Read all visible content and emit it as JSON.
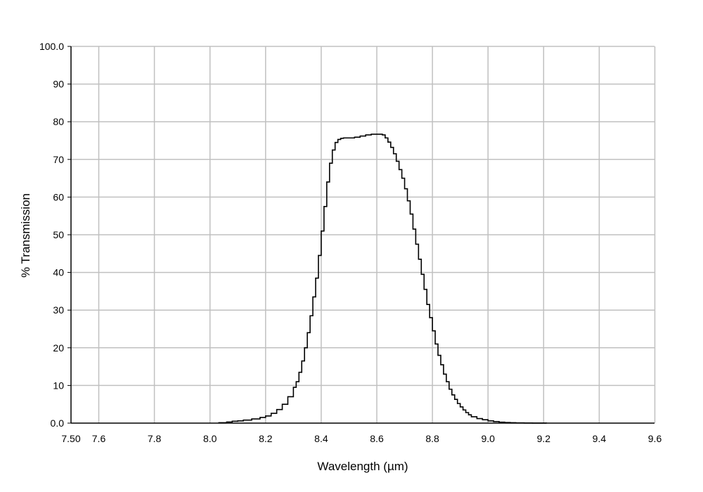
{
  "chart_data": {
    "type": "line",
    "title": "",
    "xlabel": "Wavelength (µm)",
    "ylabel": "% Transmission",
    "xlim": [
      7.5,
      9.6
    ],
    "ylim": [
      0,
      100
    ],
    "grid": true,
    "legend": "none",
    "x_ticks": [
      {
        "value": 7.5,
        "label": "7.50"
      },
      {
        "value": 7.6,
        "label": "7.6"
      },
      {
        "value": 7.8,
        "label": "7.8"
      },
      {
        "value": 8.0,
        "label": "8.0"
      },
      {
        "value": 8.2,
        "label": "8.2"
      },
      {
        "value": 8.4,
        "label": "8.4"
      },
      {
        "value": 8.6,
        "label": "8.6"
      },
      {
        "value": 8.8,
        "label": "8.8"
      },
      {
        "value": 9.0,
        "label": "9.0"
      },
      {
        "value": 9.2,
        "label": "9.2"
      },
      {
        "value": 9.4,
        "label": "9.4"
      },
      {
        "value": 9.6,
        "label": "9.6"
      }
    ],
    "y_ticks": [
      {
        "value": 0,
        "label": "0.0"
      },
      {
        "value": 10,
        "label": "10"
      },
      {
        "value": 20,
        "label": "20"
      },
      {
        "value": 30,
        "label": "30"
      },
      {
        "value": 40,
        "label": "40"
      },
      {
        "value": 50,
        "label": "50"
      },
      {
        "value": 60,
        "label": "60"
      },
      {
        "value": 70,
        "label": "70"
      },
      {
        "value": 80,
        "label": "80"
      },
      {
        "value": 90,
        "label": "90"
      },
      {
        "value": 100,
        "label": "100.0"
      }
    ],
    "series": [
      {
        "color": "#000000",
        "x": [
          8.03,
          8.06,
          8.08,
          8.1,
          8.12,
          8.15,
          8.18,
          8.2,
          8.22,
          8.24,
          8.26,
          8.28,
          8.3,
          8.31,
          8.32,
          8.33,
          8.34,
          8.35,
          8.36,
          8.37,
          8.38,
          8.39,
          8.4,
          8.41,
          8.42,
          8.43,
          8.44,
          8.45,
          8.46,
          8.47,
          8.48,
          8.49,
          8.5,
          8.52,
          8.54,
          8.56,
          8.58,
          8.6,
          8.62,
          8.63,
          8.64,
          8.65,
          8.66,
          8.67,
          8.68,
          8.69,
          8.7,
          8.71,
          8.72,
          8.73,
          8.74,
          8.75,
          8.76,
          8.77,
          8.78,
          8.79,
          8.8,
          8.81,
          8.82,
          8.83,
          8.84,
          8.85,
          8.86,
          8.87,
          8.88,
          8.89,
          8.9,
          8.91,
          8.92,
          8.93,
          8.94,
          8.96,
          8.98,
          9.0,
          9.02,
          9.04,
          9.06,
          9.08,
          9.1,
          9.13,
          9.16,
          9.19,
          9.21
        ],
        "y": [
          0.1,
          0.3,
          0.5,
          0.6,
          0.8,
          1.1,
          1.5,
          1.9,
          2.6,
          3.6,
          5.0,
          7.0,
          9.5,
          11.0,
          13.5,
          16.5,
          20.0,
          24.0,
          28.5,
          33.5,
          38.5,
          44.5,
          51.0,
          57.5,
          64.0,
          69.0,
          72.5,
          74.5,
          75.3,
          75.6,
          75.7,
          75.7,
          75.7,
          75.9,
          76.2,
          76.5,
          76.7,
          76.7,
          76.5,
          75.7,
          74.6,
          73.2,
          71.5,
          69.5,
          67.3,
          65.0,
          62.2,
          59.0,
          55.5,
          51.5,
          47.5,
          43.5,
          39.5,
          35.5,
          31.5,
          28.0,
          24.5,
          21.0,
          18.0,
          15.5,
          13.0,
          11.0,
          9.0,
          7.5,
          6.3,
          5.2,
          4.3,
          3.5,
          2.8,
          2.2,
          1.7,
          1.2,
          0.9,
          0.6,
          0.4,
          0.25,
          0.15,
          0.1,
          0.05,
          0.03,
          0.02,
          0.01,
          0.0
        ]
      }
    ]
  }
}
